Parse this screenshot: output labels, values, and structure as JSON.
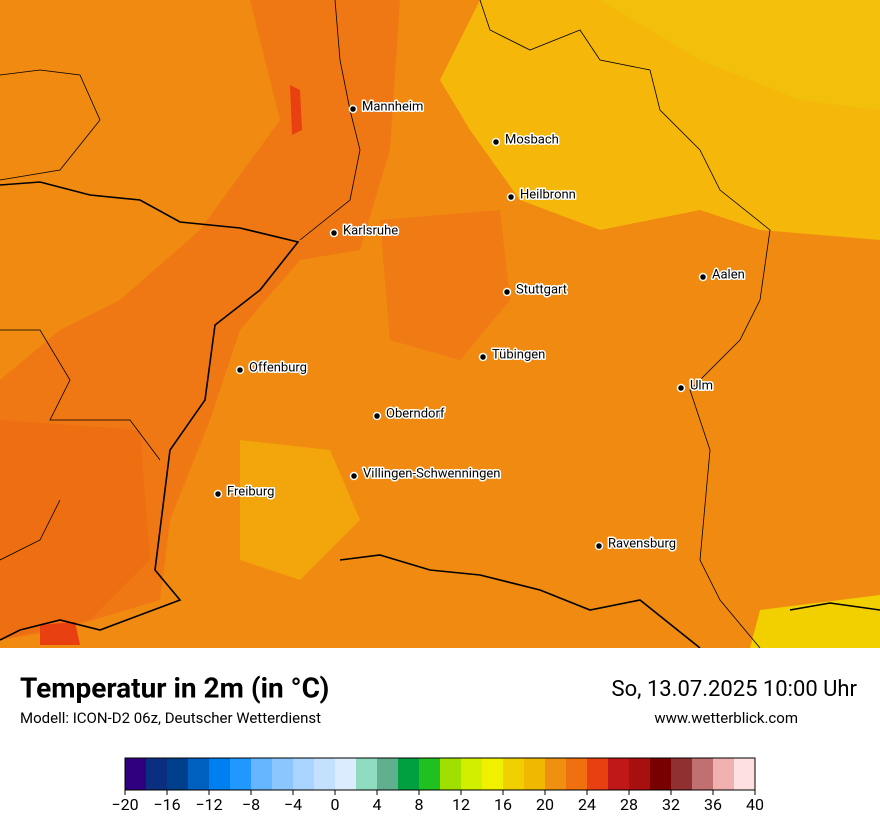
{
  "map": {
    "cities": [
      "Mannheim",
      "Mosbach",
      "Heilbronn",
      "Karlsruhe",
      "Aalen",
      "Stuttgart",
      "Tübingen",
      "Offenburg",
      "Ulm",
      "Oberndorf",
      "Villingen-Schwenningen",
      "Freiburg",
      "Ravensburg"
    ]
  },
  "footer": {
    "title": "Temperatur in 2m (in °C)",
    "subtitle": "Modell: ICON-D2 06z, Deutscher Wetterdienst",
    "datetime": "So, 13.07.2025 10:00 Uhr",
    "source": "www.wetterblick.com"
  },
  "colorbar": {
    "range": [
      -20,
      40
    ],
    "colors": [
      "#2e0080",
      "#0b2f80",
      "#003f8c",
      "#0060c0",
      "#0080f0",
      "#2098ff",
      "#66b5ff",
      "#8cc6ff",
      "#a8d4ff",
      "#c4e0ff",
      "#dcecff",
      "#90dcc0",
      "#60b090",
      "#00a040",
      "#20c020",
      "#a0e000",
      "#d0f000",
      "#f0f000",
      "#f0d000",
      "#f0b800",
      "#f09010",
      "#f07010",
      "#e84010",
      "#c01818",
      "#a81010",
      "#780000",
      "#903030",
      "#c07070",
      "#f0b0b0",
      "#ffe0e0"
    ],
    "ticks": [
      {
        "value": -20,
        "label": "−20"
      },
      {
        "value": -16,
        "label": "−16"
      },
      {
        "value": -12,
        "label": "−12"
      },
      {
        "value": -8,
        "label": "−8"
      },
      {
        "value": -4,
        "label": "−4"
      },
      0,
      4,
      8,
      12,
      16,
      20,
      24,
      28,
      32,
      36,
      40
    ]
  }
}
